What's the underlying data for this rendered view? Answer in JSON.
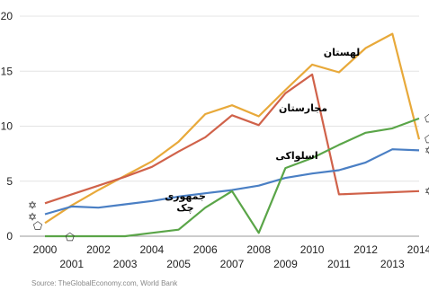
{
  "chart_data": {
    "type": "line",
    "title": "",
    "xlabel": "",
    "ylabel": "",
    "ylim": [
      0,
      20
    ],
    "yticks": [
      "0",
      "5",
      "10",
      "15",
      "20"
    ],
    "x": [
      2000,
      2001,
      2002,
      2003,
      2004,
      2005,
      2006,
      2007,
      2008,
      2009,
      2010,
      2011,
      2012,
      2013,
      2014
    ],
    "xticks_upper": [
      "2000",
      "2002",
      "2004",
      "2006",
      "2008",
      "2010",
      "2012",
      "2014"
    ],
    "xticks_lower": [
      "2001",
      "2003",
      "2005",
      "2007",
      "2009",
      "2011",
      "2013"
    ],
    "grid": "horizontal",
    "source": "Source: TheGlobalEconomy.com, World Bank",
    "series": [
      {
        "name": "لهستان",
        "color": "#e8a93a",
        "marker": "⬠",
        "values": [
          1.2,
          2.8,
          4.2,
          5.5,
          6.8,
          8.6,
          11.1,
          11.9,
          10.9,
          13.3,
          15.6,
          14.9,
          17.1,
          18.4,
          8.8
        ]
      },
      {
        "name": "مجارستان",
        "color": "#d0624a",
        "marker": "✡",
        "values": [
          3.0,
          3.8,
          4.6,
          5.4,
          6.3,
          7.7,
          9.0,
          11.0,
          10.1,
          13.0,
          14.7,
          3.8,
          3.9,
          4.0,
          4.1
        ]
      },
      {
        "name": "جمهوری چک",
        "color": "#4a7fc4",
        "marker": "✡",
        "values": [
          2.0,
          2.7,
          2.6,
          2.9,
          3.2,
          3.6,
          3.9,
          4.2,
          4.6,
          5.3,
          5.7,
          6.0,
          6.7,
          7.9,
          7.8
        ]
      },
      {
        "name": "اسلواکی",
        "color": "#5aa548",
        "marker": "⬠",
        "values": [
          0,
          0,
          0,
          0,
          0.3,
          0.6,
          2.6,
          4.1,
          0.3,
          6.2,
          7.1,
          8.3,
          9.4,
          9.8,
          10.7
        ]
      }
    ]
  }
}
